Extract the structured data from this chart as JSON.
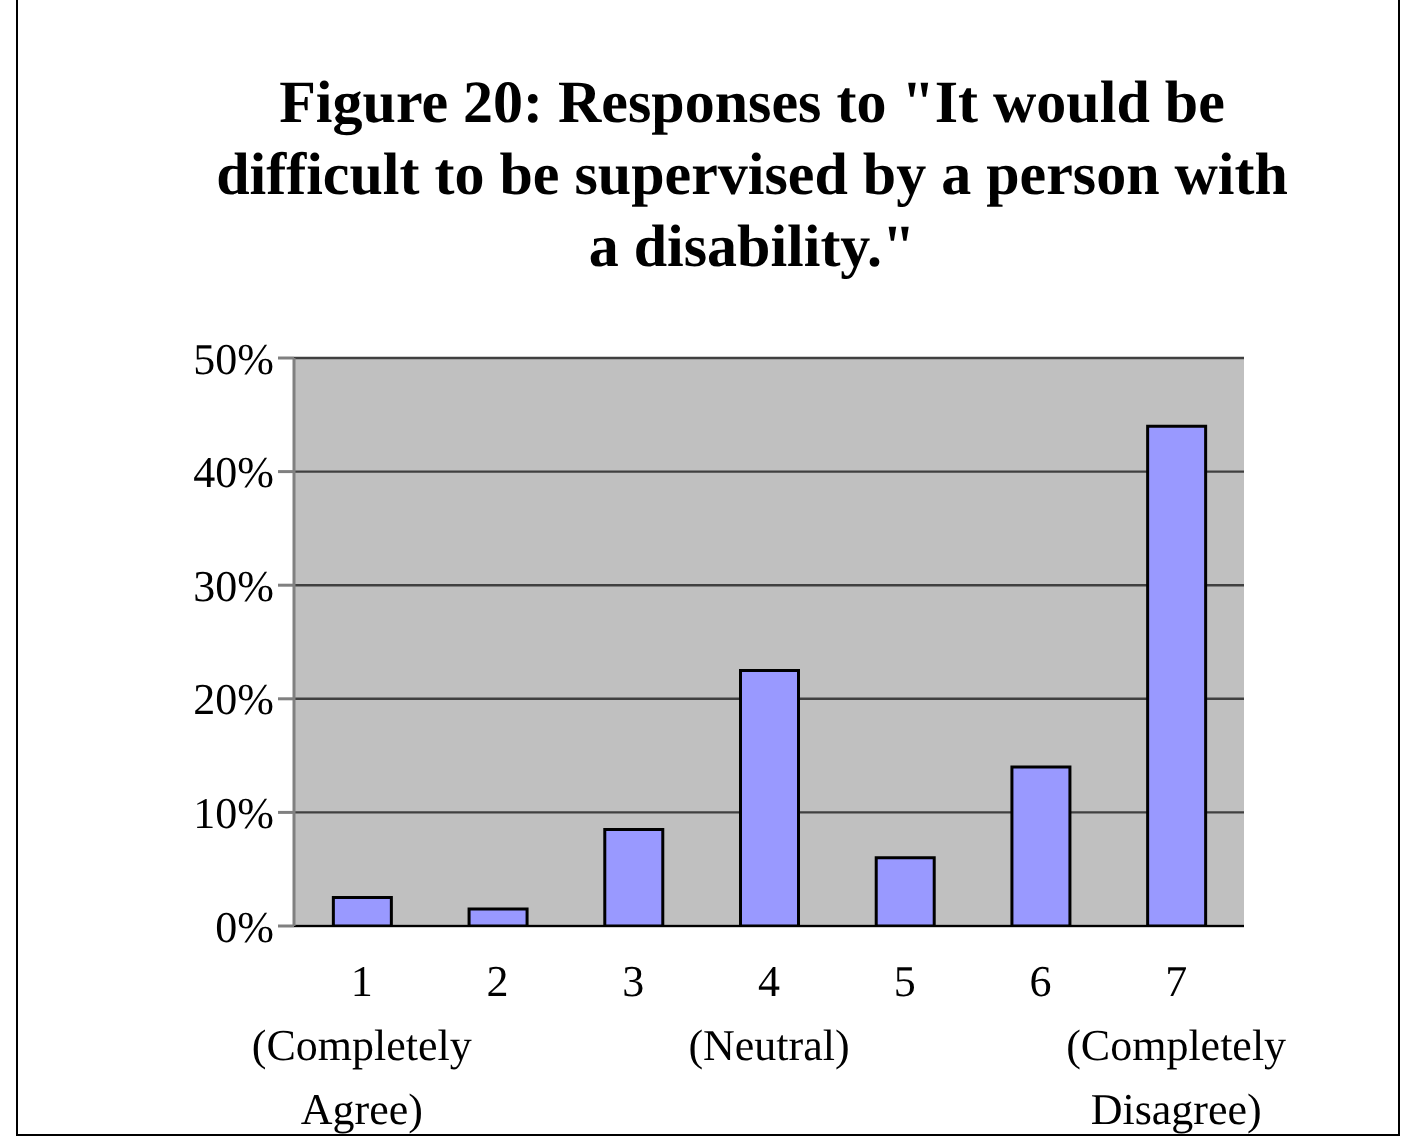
{
  "chart_data": {
    "type": "bar",
    "title": "Figure 20: Responses to \"It would be difficult to be supervised by a person with a disability.\"",
    "categories": [
      "1\n(Completely\nAgree)",
      "2",
      "3",
      "4\n(Neutral)",
      "5",
      "6",
      "7\n(Completely\nDisagree)"
    ],
    "values": [
      2.5,
      1.5,
      8.5,
      22.5,
      6,
      14,
      44
    ],
    "color": "#9999ff",
    "ylim": [
      0,
      50
    ],
    "yticks": [
      {
        "value": 0,
        "label": "0%"
      },
      {
        "value": 10,
        "label": "10%"
      },
      {
        "value": 20,
        "label": "20%"
      },
      {
        "value": 30,
        "label": "30%"
      },
      {
        "value": 40,
        "label": "40%"
      },
      {
        "value": 50,
        "label": "50%"
      }
    ],
    "grid": "y"
  }
}
